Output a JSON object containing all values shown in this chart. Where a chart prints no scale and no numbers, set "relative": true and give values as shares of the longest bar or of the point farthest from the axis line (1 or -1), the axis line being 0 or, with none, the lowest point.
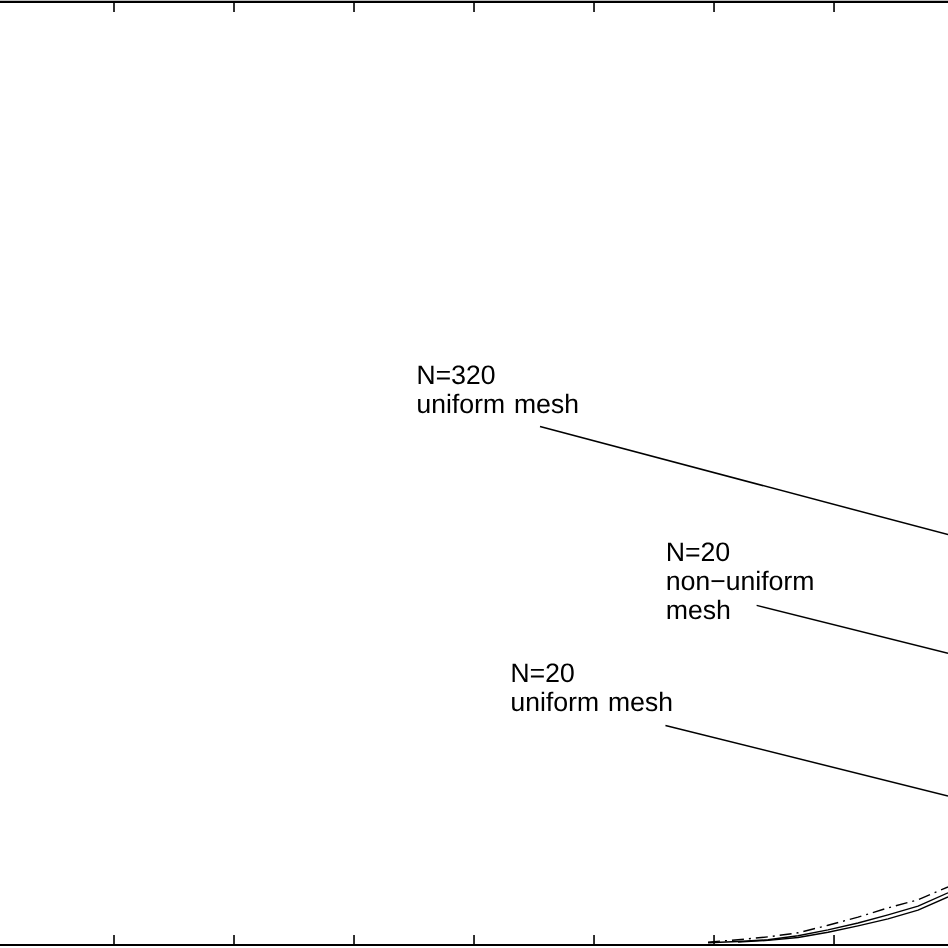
{
  "chart_data": {
    "type": "line",
    "relative": true,
    "categories": [
      null,
      null,
      null,
      null,
      null,
      null,
      null,
      null,
      null,
      null,
      null,
      null,
      null,
      null,
      null,
      null,
      null,
      null,
      null,
      null,
      null,
      null,
      null,
      null,
      null,
      null,
      null,
      null,
      null,
      null,
      null
    ],
    "series": [
      {
        "color": "#000000",
        "line_style": "dashdot",
        "values": [
          null,
          null,
          null,
          null,
          null,
          null,
          null,
          null,
          null,
          null,
          null,
          null,
          null,
          null,
          null,
          null,
          null,
          null,
          null,
          null,
          null,
          null,
          0.05,
          0.09,
          0.14,
          0.21,
          0.34,
          0.48,
          0.64,
          0.78,
          1
        ]
      },
      {
        "color": "#000000",
        "line_style": "solid",
        "values": [
          null,
          null,
          null,
          null,
          null,
          null,
          null,
          null,
          null,
          null,
          null,
          null,
          null,
          null,
          null,
          null,
          null,
          null,
          null,
          null,
          null,
          null,
          0.04,
          0.06,
          0.09,
          0.16,
          0.26,
          0.38,
          0.52,
          0.67,
          0.9
        ]
      },
      {
        "color": "#000000",
        "line_style": "solid",
        "values": [
          null,
          null,
          null,
          null,
          null,
          null,
          null,
          null,
          null,
          null,
          null,
          null,
          null,
          null,
          null,
          null,
          null,
          null,
          null,
          null,
          null,
          null,
          null,
          0.05,
          0.08,
          0.13,
          0.22,
          0.33,
          0.45,
          0.6,
          0.83
        ]
      }
    ],
    "annotations": [
      "N=320\nuniform mesh",
      "N=20\nnon−uniform\nmesh",
      "N=20\nuniform mesh"
    ]
  }
}
